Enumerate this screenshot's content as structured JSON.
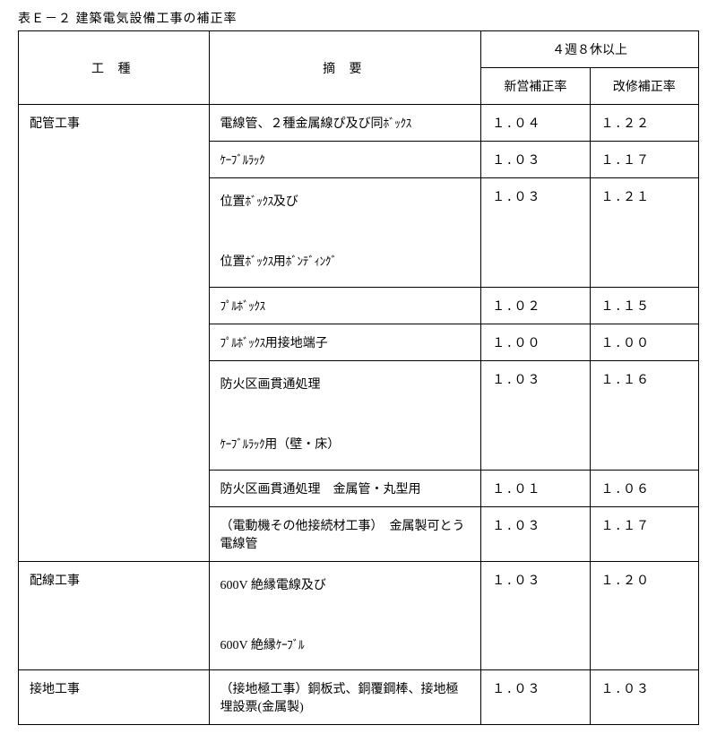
{
  "title": "表Ｅ－２ 建築電気設備工事の補正率",
  "header": {
    "kind": "工 種",
    "desc": "摘 要",
    "week": "４週８休以上",
    "rate_new": "新営補正率",
    "rate_mod": "改修補正率"
  },
  "groups": [
    {
      "kind": "配管工事",
      "rows": [
        {
          "desc_html": "電線管、２種金属線ぴ及び同<span class='half'>ﾎﾞｯｸｽ</span>",
          "new": "１.０４",
          "mod": "１.２２"
        },
        {
          "desc_html": "<span class='half'>ｹｰﾌﾞﾙﾗｯｸ</span>",
          "new": "１.０３",
          "mod": "１.１７"
        },
        {
          "desc_html": "位置<span class='half'>ﾎﾞｯｸｽ</span>及び<br><br>位置<span class='half'>ﾎﾞｯｸｽ</span>用<span class='half'>ﾎﾞﾝﾃﾞｨﾝｸﾞ</span>",
          "new": "１.０３",
          "mod": "１.２１",
          "multiline": true
        },
        {
          "desc_html": "<span class='half'>ﾌﾟﾙﾎﾞｯｸｽ</span>",
          "new": "１.０２",
          "mod": "１.１５"
        },
        {
          "desc_html": "<span class='half'>ﾌﾟﾙﾎﾞｯｸｽ</span>用接地端子",
          "new": "１.００",
          "mod": "１.００"
        },
        {
          "desc_html": "防火区画貫通処理<br><br><span class='half'>ｹｰﾌﾞﾙﾗｯｸ</span>用（壁・床）",
          "new": "１.０３",
          "mod": "１.１６",
          "multiline": true
        },
        {
          "desc_html": "防火区画貫通処理　金属管・丸型用",
          "new": "１.０１",
          "mod": "１.０６"
        },
        {
          "desc_html": "（電動機その他接続材工事）　金属製可とう電線管",
          "new": "１.０３",
          "mod": "１.１７"
        }
      ]
    },
    {
      "kind": "配線工事",
      "rows": [
        {
          "desc_html": "600V 絶縁電線及び<br><br>600V 絶縁<span class='half'>ｹｰﾌﾞﾙ</span>",
          "new": "１.０３",
          "mod": "１.２０",
          "multiline": true
        }
      ]
    },
    {
      "kind": "接地工事",
      "rows": [
        {
          "desc_html": "（接地極工事）銅板式、銅覆鋼棒、接地極埋設票(金属製)",
          "new": "１.０３",
          "mod": "１.０３"
        }
      ]
    }
  ]
}
